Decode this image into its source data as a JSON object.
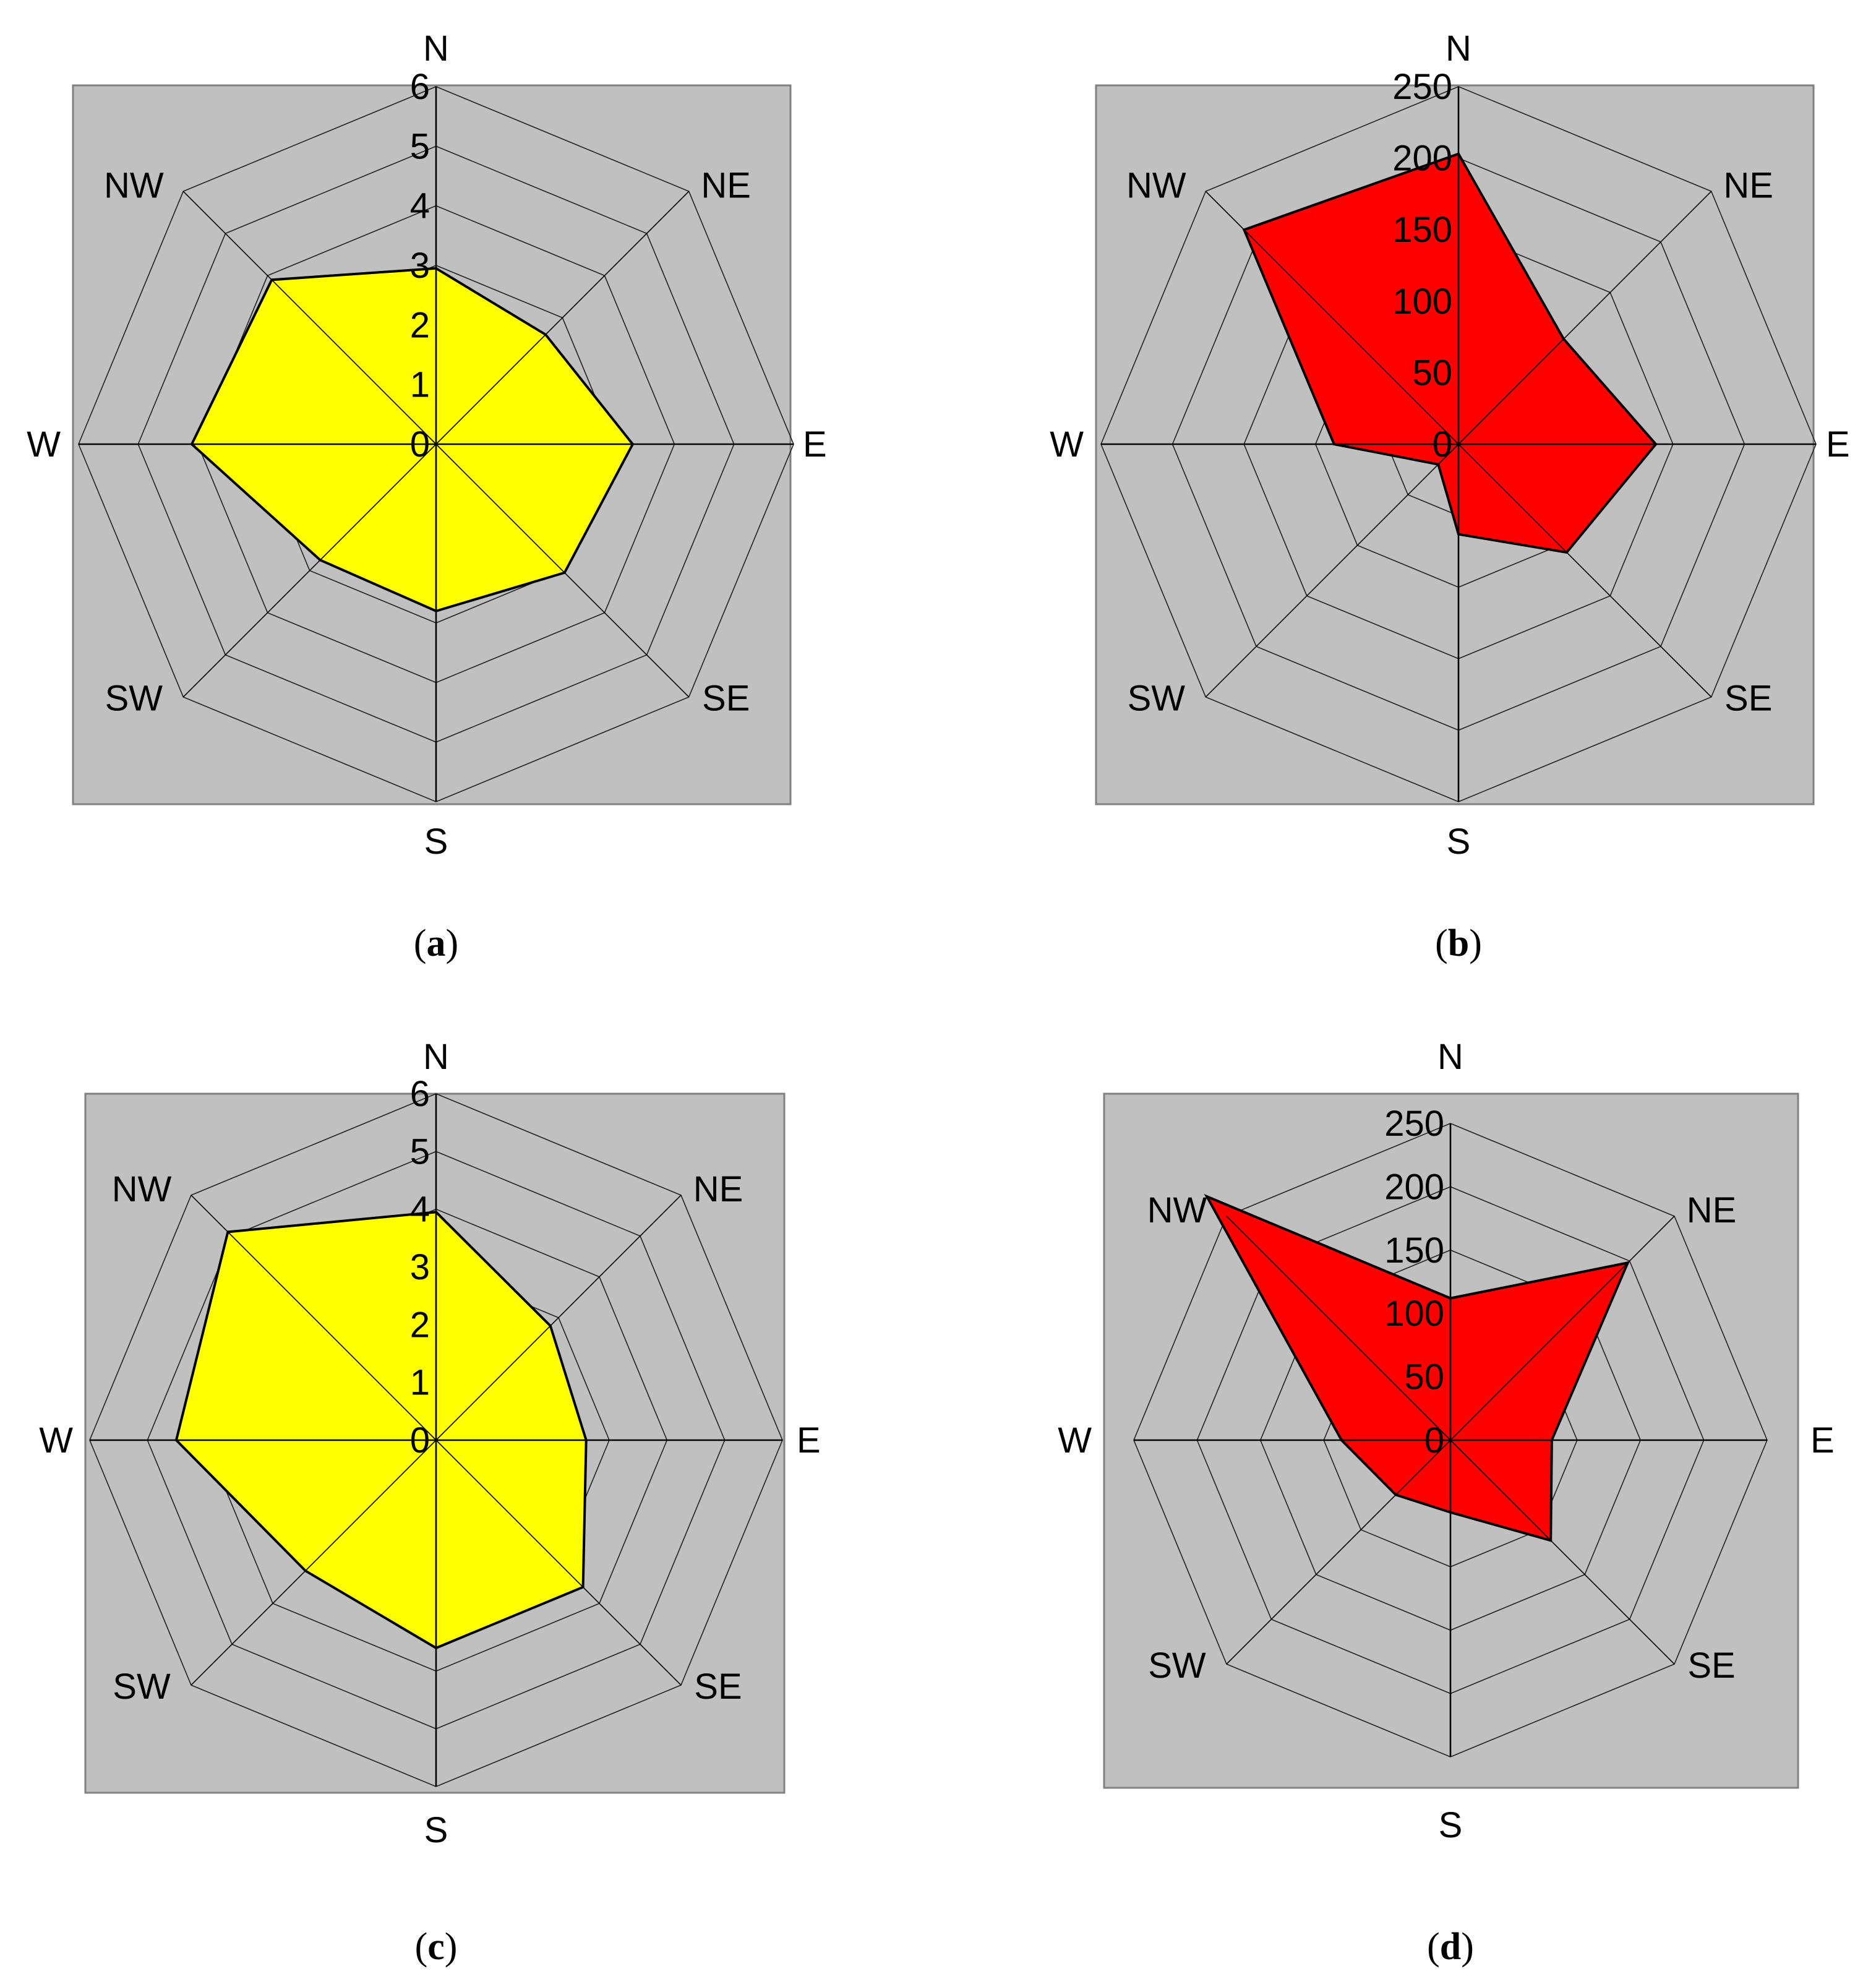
{
  "directions": [
    "N",
    "NE",
    "E",
    "SE",
    "S",
    "SW",
    "W",
    "NW"
  ],
  "colors": {
    "panel": "#c0c0c0",
    "grid": "#000000",
    "yellow": "#ffff00",
    "red": "#ff0000"
  },
  "chart_data": [
    {
      "id": "a",
      "type": "radar",
      "caption_letter": "a",
      "categories": [
        "N",
        "NE",
        "E",
        "SE",
        "S",
        "SW",
        "W",
        "NW"
      ],
      "ticks": [
        "0",
        "1",
        "2",
        "3",
        "4",
        "5",
        "6"
      ],
      "rmax": 6,
      "fill_color": "#ffff00",
      "values": [
        2.95,
        2.6,
        3.3,
        3.05,
        2.8,
        2.75,
        4.1,
        3.9
      ]
    },
    {
      "id": "b",
      "type": "radar",
      "caption_letter": "b",
      "categories": [
        "N",
        "NE",
        "E",
        "SE",
        "S",
        "SW",
        "W",
        "NW"
      ],
      "ticks": [
        "0",
        "50",
        "100",
        "150",
        "200",
        "250"
      ],
      "rmax": 250,
      "fill_color": "#ff0000",
      "values": [
        203,
        104,
        138,
        107,
        63,
        20,
        87,
        212
      ]
    },
    {
      "id": "c",
      "type": "radar",
      "caption_letter": "c",
      "categories": [
        "N",
        "NE",
        "E",
        "SE",
        "S",
        "SW",
        "W",
        "NW"
      ],
      "ticks": [
        "0",
        "1",
        "2",
        "3",
        "4",
        "5",
        "6"
      ],
      "rmax": 6,
      "fill_color": "#ffff00",
      "values": [
        3.95,
        2.8,
        2.6,
        3.6,
        3.6,
        3.2,
        4.5,
        5.1
      ]
    },
    {
      "id": "d",
      "type": "radar",
      "caption_letter": "d",
      "categories": [
        "N",
        "NE",
        "E",
        "SE",
        "S",
        "SW",
        "W",
        "NW"
      ],
      "ticks": [
        "0",
        "50",
        "100",
        "150",
        "200",
        "250"
      ],
      "rmax": 250,
      "fill_color": "#ff0000",
      "values": [
        112,
        198,
        80,
        112,
        57,
        61,
        86,
        272
      ]
    }
  ]
}
